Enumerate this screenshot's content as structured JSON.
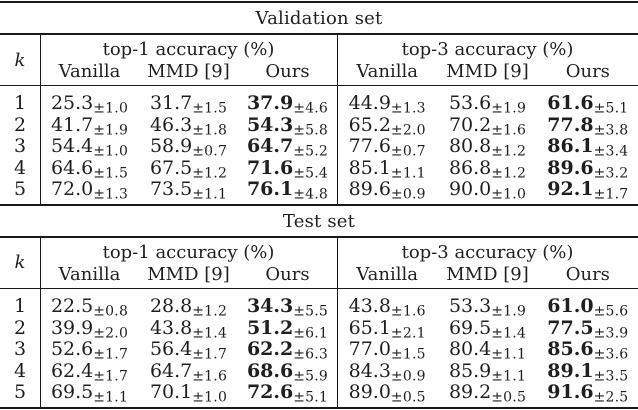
{
  "colors": {
    "text": "#1f1f1f",
    "rule": "#1a1a1a",
    "background": "#ffffff"
  },
  "tbl": {
    "sections": [
      {
        "title": "Validation set",
        "k": "k",
        "g1": "top-1 accuracy (%)",
        "g2": "top-3 accuracy (%)",
        "cols": [
          "Vanilla",
          "MMD [9]",
          "Ours"
        ],
        "rows": [
          {
            "k": "1",
            "c": [
              {
                "v": "25.3",
                "pm": "±1.0"
              },
              {
                "v": "31.7",
                "pm": "±1.5"
              },
              {
                "v": "37.9",
                "pm": "±4.6"
              },
              {
                "v": "44.9",
                "pm": "±1.3"
              },
              {
                "v": "53.6",
                "pm": "±1.9"
              },
              {
                "v": "61.6",
                "pm": "±5.1"
              }
            ]
          },
          {
            "k": "2",
            "c": [
              {
                "v": "41.7",
                "pm": "±1.9"
              },
              {
                "v": "46.3",
                "pm": "±1.8"
              },
              {
                "v": "54.3",
                "pm": "±5.8"
              },
              {
                "v": "65.2",
                "pm": "±2.0"
              },
              {
                "v": "70.2",
                "pm": "±1.6"
              },
              {
                "v": "77.8",
                "pm": "±3.8"
              }
            ]
          },
          {
            "k": "3",
            "c": [
              {
                "v": "54.4",
                "pm": "±1.0"
              },
              {
                "v": "58.9",
                "pm": "±0.7"
              },
              {
                "v": "64.7",
                "pm": "±5.2"
              },
              {
                "v": "77.6",
                "pm": "±0.7"
              },
              {
                "v": "80.8",
                "pm": "±1.2"
              },
              {
                "v": "86.1",
                "pm": "±3.4"
              }
            ]
          },
          {
            "k": "4",
            "c": [
              {
                "v": "64.6",
                "pm": "±1.5"
              },
              {
                "v": "67.5",
                "pm": "±1.2"
              },
              {
                "v": "71.6",
                "pm": "±5.4"
              },
              {
                "v": "85.1",
                "pm": "±1.1"
              },
              {
                "v": "86.8",
                "pm": "±1.2"
              },
              {
                "v": "89.6",
                "pm": "±3.2"
              }
            ]
          },
          {
            "k": "5",
            "c": [
              {
                "v": "72.0",
                "pm": "±1.3"
              },
              {
                "v": "73.5",
                "pm": "±1.1"
              },
              {
                "v": "76.1",
                "pm": "±4.8"
              },
              {
                "v": "89.6",
                "pm": "±0.9"
              },
              {
                "v": "90.0",
                "pm": "±1.0"
              },
              {
                "v": "92.1",
                "pm": "±1.7"
              }
            ]
          }
        ]
      },
      {
        "title": "Test set",
        "k": "k",
        "g1": "top-1 accuracy (%)",
        "g2": "top-3 accuracy (%)",
        "cols": [
          "Vanilla",
          "MMD [9]",
          "Ours"
        ],
        "rows": [
          {
            "k": "1",
            "c": [
              {
                "v": "22.5",
                "pm": "±0.8"
              },
              {
                "v": "28.8",
                "pm": "±1.2"
              },
              {
                "v": "34.3",
                "pm": "±5.5"
              },
              {
                "v": "43.8",
                "pm": "±1.6"
              },
              {
                "v": "53.3",
                "pm": "±1.9"
              },
              {
                "v": "61.0",
                "pm": "±5.6"
              }
            ]
          },
          {
            "k": "2",
            "c": [
              {
                "v": "39.9",
                "pm": "±2.0"
              },
              {
                "v": "43.8",
                "pm": "±1.4"
              },
              {
                "v": "51.2",
                "pm": "±6.1"
              },
              {
                "v": "65.1",
                "pm": "±2.1"
              },
              {
                "v": "69.5",
                "pm": "±1.4"
              },
              {
                "v": "77.5",
                "pm": "±3.9"
              }
            ]
          },
          {
            "k": "3",
            "c": [
              {
                "v": "52.6",
                "pm": "±1.7"
              },
              {
                "v": "56.4",
                "pm": "±1.7"
              },
              {
                "v": "62.2",
                "pm": "±6.3"
              },
              {
                "v": "77.0",
                "pm": "±1.5"
              },
              {
                "v": "80.4",
                "pm": "±1.1"
              },
              {
                "v": "85.6",
                "pm": "±3.6"
              }
            ]
          },
          {
            "k": "4",
            "c": [
              {
                "v": "62.4",
                "pm": "±1.7"
              },
              {
                "v": "64.7",
                "pm": "±1.6"
              },
              {
                "v": "68.6",
                "pm": "±5.9"
              },
              {
                "v": "84.3",
                "pm": "±0.9"
              },
              {
                "v": "85.9",
                "pm": "±1.1"
              },
              {
                "v": "89.1",
                "pm": "±3.5"
              }
            ]
          },
          {
            "k": "5",
            "c": [
              {
                "v": "69.5",
                "pm": "±1.1"
              },
              {
                "v": "70.1",
                "pm": "±1.0"
              },
              {
                "v": "72.6",
                "pm": "±5.1"
              },
              {
                "v": "89.0",
                "pm": "±0.5"
              },
              {
                "v": "89.2",
                "pm": "±0.5"
              },
              {
                "v": "91.6",
                "pm": "±2.5"
              }
            ]
          }
        ]
      }
    ]
  }
}
